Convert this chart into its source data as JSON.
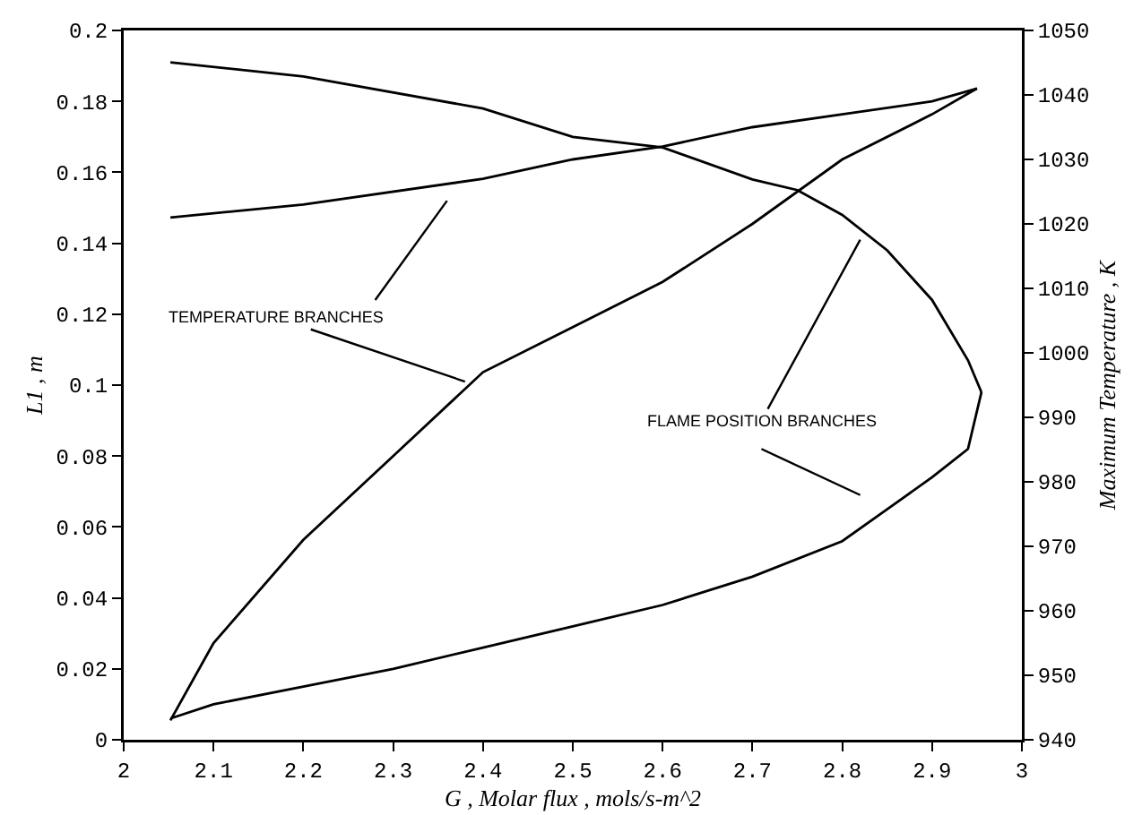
{
  "chart_data": {
    "type": "line",
    "xlabel": "G , Molar flux , mols/s-m^2",
    "ylabel": "L1 , m",
    "y2label": "Maximum Temperature , K",
    "annotations": [
      {
        "text": "TEMPERATURE BRANCHES",
        "x": 2.38,
        "y": 0.101
      },
      {
        "text": "FLAME POSITION BRANCHES",
        "x": 2.82,
        "y": 0.141
      }
    ],
    "series": [
      {
        "color": "#000000",
        "axis": "y2",
        "x": [
          2.052,
          2.2,
          2.4,
          2.5,
          2.6,
          2.7,
          2.8,
          2.9,
          2.95
        ],
        "values": [
          1021,
          1023,
          1027,
          1030,
          1032,
          1035,
          1037,
          1039,
          1041
        ]
      },
      {
        "color": "#000000",
        "axis": "y2",
        "x": [
          2.052,
          2.1,
          2.2,
          2.3,
          2.4,
          2.5,
          2.6,
          2.7,
          2.8,
          2.9,
          2.95
        ],
        "values": [
          943,
          955,
          971,
          984,
          997,
          1004,
          1011,
          1020,
          1030,
          1037,
          1041
        ]
      },
      {
        "color": "#000000",
        "x": [
          2.052,
          2.2,
          2.4,
          2.5,
          2.6,
          2.7,
          2.75,
          2.8,
          2.85,
          2.9,
          2.94,
          2.955
        ],
        "values": [
          0.191,
          0.187,
          0.178,
          0.17,
          0.167,
          0.158,
          0.155,
          0.148,
          0.138,
          0.124,
          0.107,
          0.098
        ]
      },
      {
        "color": "#000000",
        "x": [
          2.955,
          2.94,
          2.9,
          2.85,
          2.8,
          2.7,
          2.6,
          2.5,
          2.4,
          2.3,
          2.2,
          2.1,
          2.052
        ],
        "values": [
          0.098,
          0.082,
          0.074,
          0.065,
          0.056,
          0.046,
          0.038,
          0.032,
          0.026,
          0.02,
          0.015,
          0.01,
          0.006
        ]
      }
    ],
    "xlim": [
      2,
      3
    ],
    "xticks": [
      2,
      2.1,
      2.2,
      2.3,
      2.4,
      2.5,
      2.6,
      2.7,
      2.8,
      2.9,
      3
    ],
    "ylim": [
      0,
      0.2
    ],
    "yticks": [
      0,
      0.02,
      0.04,
      0.06,
      0.08,
      0.1,
      0.12,
      0.14,
      0.16,
      0.18,
      0.2
    ],
    "y2lim": [
      940,
      1050
    ],
    "y2ticks": [
      940,
      950,
      960,
      970,
      980,
      990,
      1000,
      1010,
      1020,
      1030,
      1040,
      1050
    ],
    "grid": false,
    "marker": "none",
    "line_style": "solid"
  }
}
